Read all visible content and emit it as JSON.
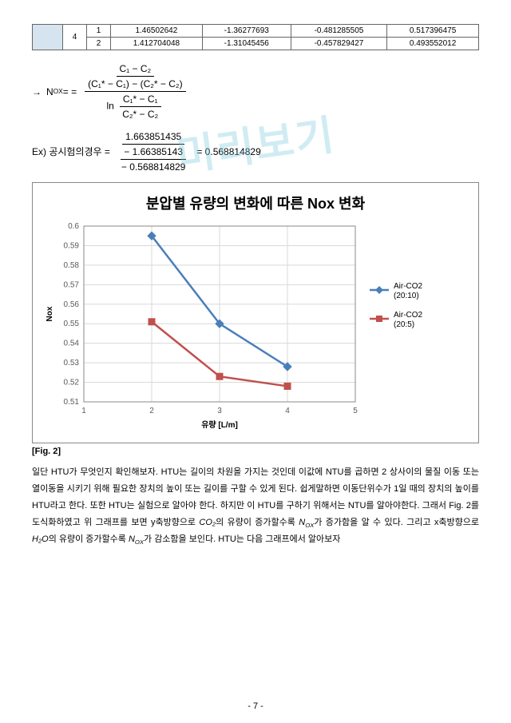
{
  "watermark_text": "미리보기",
  "table": {
    "header_cell": "",
    "group": "4",
    "rows": [
      {
        "idx": "1",
        "v1": "1.46502642",
        "v2": "-1.36277693",
        "v3": "-0.481285505",
        "v4": "0.517396475"
      },
      {
        "idx": "2",
        "v1": "1.412704048",
        "v2": "-1.31045456",
        "v3": "-0.457829427",
        "v4": "0.493552012"
      }
    ]
  },
  "formula": {
    "arrow": "→",
    "lhs": "N",
    "lhs_sub": "OX",
    "eq": " = = ",
    "num_top": "C₁ − C₂",
    "den_top_line1": "(C₁* − C₁) − (C₂* − C₂)",
    "den_top_line2_num": "C₁* − C₁",
    "den_top_line2_den": "C₂* − C₂",
    "ln": "ln"
  },
  "example": {
    "label": "Ex)  공시험의경우 = ",
    "num": "1.663851435",
    "den_line1": "− 1.66385143",
    "den_line2": "− 0.568814829",
    "result": " = 0.568814829"
  },
  "chart": {
    "title": "분압별 유량의 변화에 따른 Nox 변화",
    "ylabel": "Nox",
    "xlabel": "유량 [L/m]",
    "ylim": [
      0.51,
      0.6
    ],
    "yticks": [
      "0.6",
      "0.59",
      "0.58",
      "0.57",
      "0.56",
      "0.55",
      "0.54",
      "0.53",
      "0.52",
      "0.51"
    ],
    "xlim": [
      1,
      5
    ],
    "xticks": [
      "1",
      "2",
      "3",
      "4",
      "5"
    ],
    "series": [
      {
        "name": "Air-CO2 (20:10)",
        "color": "#4a7ebb",
        "marker": "diamond",
        "points": [
          [
            2,
            0.595
          ],
          [
            3,
            0.55
          ],
          [
            4,
            0.528
          ]
        ]
      },
      {
        "name": "Air-CO2 (20:5)",
        "color": "#c0504d",
        "marker": "square",
        "points": [
          [
            2,
            0.551
          ],
          [
            3,
            0.523
          ],
          [
            4,
            0.518
          ]
        ]
      }
    ],
    "legend_pos": "right",
    "grid_color": "#d9d9d9",
    "background": "#ffffff"
  },
  "fig_label": "[Fig. 2]",
  "body": {
    "p1": "일단 HTU가 무엇인지 확인해보자. HTU는 길이의 차원을 가지는 것인데 이값에 NTU를 곱하면 2 상사이의 물질 이동 또는 열이동을 시키기 위해 필요한 장치의 높이 또는 길이를 구할 수 있게 된다. 쉽게말하면 이동단위수가 1일 때의 장치의 높이를 HTU라고 한다. 또한 HTU는 실험으로 알아야 한다. 하지만 이 HTU를 구하기 위해서는 NTU를 알아야한다. 그래서 Fig. 2를 도식화하였고 위 그래프를 보면 y축방향으로 ",
    "co2_ital": "CO₂",
    "p2": "의 유량이 증가할수록 ",
    "nox_ital": "N",
    "nox_sub": "OX",
    "p3": "가 증가함을 알 수 있다. 그리고 x축방향으로 ",
    "h2o_ital": "H₂O",
    "p4": "의 유량이 증가할수록 ",
    "p5": "가 감소함을 보인다. HTU는 다음 그래프에서 알아보자"
  },
  "page_number": "- 7 -"
}
